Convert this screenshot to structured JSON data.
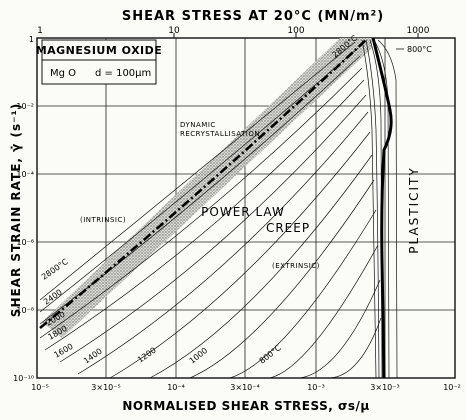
{
  "top_axis": {
    "title": "SHEAR STRESS AT 20°C (MN/m²)",
    "ticks": [
      "1",
      "10",
      "100",
      "1000"
    ]
  },
  "bottom_axis": {
    "title": "NORMALISED SHEAR STRESS, σs/μ",
    "ticks": [
      "10⁻⁵",
      "3×10⁻⁵",
      "10⁻⁴",
      "3×10⁻⁴",
      "10⁻³",
      "3×10⁻³",
      "10⁻²"
    ]
  },
  "left_axis": {
    "title": "SHEAR STRAIN RATE, γ̇ (s⁻¹)",
    "ticks": [
      "1",
      "10⁻²",
      "10⁻⁴",
      "10⁻⁶",
      "10⁻⁸",
      "10⁻¹⁰"
    ]
  },
  "legend_box": {
    "material": "MAGNESIUM OXIDE",
    "formula": "Mg O",
    "grain_size": "d = 100μm"
  },
  "regions": {
    "power_law_1": "POWER LAW",
    "power_law_2": "CREEP",
    "plasticity": "PLASTICITY",
    "dynamic_1": "DYNAMIC",
    "dynamic_2": "RECRYSTALLISATION",
    "intrinsic": "(INTRINSIC)",
    "extrinsic": "(EXTRINSIC)"
  },
  "contours": {
    "t2800_top": "2800°C",
    "t800_top": "800°C",
    "t2800_left": "2800°C",
    "t2400": "2400",
    "t2000": "2000",
    "t1800": "1800",
    "t1600": "1600",
    "t1400": "1400",
    "t1200": "1200",
    "t1000": "1000",
    "t800_bottom": "800°C"
  },
  "chart_data": {
    "type": "line",
    "x_axis": {
      "scale": "log",
      "range": [
        1e-05,
        0.01
      ]
    },
    "y_axis": {
      "scale": "log",
      "range": [
        1e-10,
        1
      ]
    },
    "top_axis_range": [
      1,
      1000
    ],
    "grid": true,
    "series_temperatures_c": [
      800,
      1000,
      1200,
      1400,
      1600,
      1800,
      2000,
      2400,
      2800
    ]
  }
}
